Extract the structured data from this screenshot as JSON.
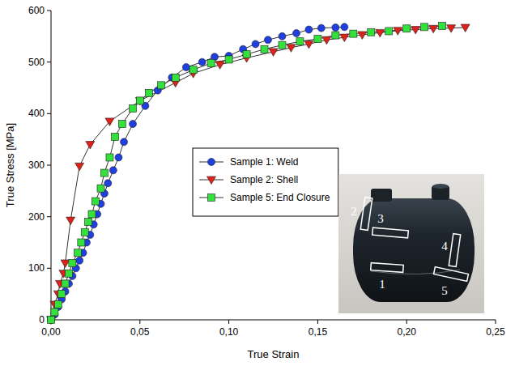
{
  "chart_data": {
    "type": "scatter",
    "x_label": "True Strain",
    "y_label": "True Stress [MPa]",
    "xlim": [
      0,
      0.25
    ],
    "ylim": [
      0,
      600
    ],
    "xticks": [
      {
        "value": 0,
        "label": "0,00"
      },
      {
        "value": 0.05,
        "label": "0,05"
      },
      {
        "value": 0.1,
        "label": "0,10"
      },
      {
        "value": 0.15,
        "label": "0,15"
      },
      {
        "value": 0.2,
        "label": "0,20"
      },
      {
        "value": 0.25,
        "label": "0,25"
      }
    ],
    "yticks": [
      0,
      100,
      200,
      300,
      400,
      500,
      600
    ],
    "grid": false,
    "legend": "center",
    "series": [
      {
        "name": "Sample 1: Weld",
        "color": "#1f3fe0",
        "marker": "circle",
        "line_style": "solid",
        "x": [
          0,
          0.002,
          0.004,
          0.006,
          0.008,
          0.01,
          0.012,
          0.014,
          0.016,
          0.018,
          0.02,
          0.022,
          0.024,
          0.026,
          0.028,
          0.03,
          0.032,
          0.035,
          0.038,
          0.041,
          0.046,
          0.053,
          0.06,
          0.068,
          0.076,
          0.085,
          0.092,
          0.1,
          0.108,
          0.115,
          0.122,
          0.13,
          0.138,
          0.145,
          0.152,
          0.16,
          0.165
        ],
        "values": [
          0,
          10,
          25,
          40,
          55,
          70,
          85,
          100,
          115,
          130,
          150,
          165,
          185,
          205,
          225,
          245,
          265,
          290,
          315,
          345,
          380,
          415,
          445,
          470,
          490,
          500,
          510,
          512,
          525,
          535,
          543,
          550,
          556,
          563,
          566,
          567,
          568
        ]
      },
      {
        "name": "Sample 2: Shell",
        "color": "#e0201a",
        "marker": "triangle-down",
        "line_style": "solid",
        "x": [
          0,
          0.002,
          0.004,
          0.005,
          0.007,
          0.008,
          0.011,
          0.016,
          0.022,
          0.033,
          0.05,
          0.07,
          0.08,
          0.095,
          0.11,
          0.125,
          0.135,
          0.145,
          0.155,
          0.165,
          0.175,
          0.185,
          0.195,
          0.205,
          0.215,
          0.225,
          0.233
        ],
        "values": [
          0,
          30,
          50,
          70,
          90,
          110,
          193,
          298,
          340,
          385,
          425,
          460,
          478,
          495,
          508,
          520,
          528,
          535,
          543,
          548,
          553,
          557,
          561,
          563,
          565,
          566,
          567
        ]
      },
      {
        "name": "Sample 5: End Closure",
        "color": "#33e03c",
        "marker": "square",
        "line_style": "solid",
        "x": [
          0,
          0.002,
          0.004,
          0.006,
          0.008,
          0.01,
          0.012,
          0.015,
          0.017,
          0.019,
          0.021,
          0.023,
          0.025,
          0.028,
          0.03,
          0.033,
          0.036,
          0.04,
          0.046,
          0.05,
          0.055,
          0.062,
          0.07,
          0.08,
          0.09,
          0.1,
          0.11,
          0.12,
          0.13,
          0.14,
          0.15,
          0.16,
          0.17,
          0.18,
          0.19,
          0.2,
          0.21,
          0.22
        ],
        "values": [
          0,
          15,
          30,
          50,
          70,
          90,
          110,
          130,
          150,
          170,
          190,
          205,
          230,
          255,
          285,
          315,
          355,
          380,
          410,
          425,
          440,
          455,
          470,
          485,
          498,
          505,
          515,
          525,
          533,
          540,
          545,
          552,
          555,
          558,
          560,
          565,
          568,
          570
        ]
      }
    ]
  },
  "inset": {
    "labels": [
      "1",
      "2",
      "3",
      "4",
      "5"
    ]
  }
}
